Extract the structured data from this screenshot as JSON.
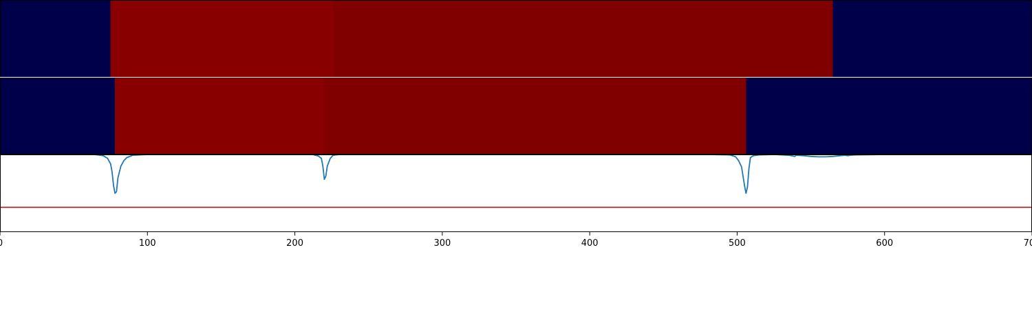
{
  "chart_data": [
    {
      "type": "heatmap",
      "row": "top",
      "segments": [
        {
          "x0": 0,
          "x1": 75,
          "color": "#00004a"
        },
        {
          "x0": 75,
          "x1": 226,
          "color": "#880000"
        },
        {
          "x0": 226,
          "x1": 565,
          "color": "#800000"
        },
        {
          "x0": 565,
          "x1": 700,
          "color": "#00004a"
        }
      ]
    },
    {
      "type": "heatmap",
      "row": "middle",
      "segments": [
        {
          "x0": 0,
          "x1": 78,
          "color": "#00004a"
        },
        {
          "x0": 78,
          "x1": 220,
          "color": "#880000"
        },
        {
          "x0": 220,
          "x1": 506,
          "color": "#800000"
        },
        {
          "x0": 506,
          "x1": 700,
          "color": "#00004a"
        }
      ]
    },
    {
      "type": "line",
      "xlim": [
        0,
        700
      ],
      "ylim": [
        0,
        1
      ],
      "xticks": [
        0,
        100,
        200,
        300,
        400,
        500,
        600,
        700
      ],
      "xtick_labels": [
        "0",
        "100",
        "200",
        "300",
        "400",
        "500",
        "600",
        "700"
      ],
      "threshold": {
        "y": 0.32,
        "color": "#d62728"
      },
      "series": [
        {
          "color": "#1f77b4",
          "x": [
            0,
            50,
            60,
            65,
            70,
            73,
            75,
            76,
            77,
            78,
            79,
            80,
            82,
            84,
            86,
            90,
            100,
            130,
            200,
            212,
            216,
            218,
            219,
            220,
            221,
            222,
            224,
            226,
            230,
            240,
            300,
            400,
            480,
            495,
            499,
            501,
            503,
            504,
            505,
            506,
            507,
            508,
            509,
            511,
            515,
            525,
            535,
            538,
            539,
            540,
            545,
            550,
            555,
            560,
            565,
            570,
            573,
            575,
            577,
            580,
            600,
            650,
            700
          ],
          "y": [
            1,
            1,
            1,
            0.998,
            0.985,
            0.95,
            0.88,
            0.78,
            0.6,
            0.5,
            0.52,
            0.7,
            0.85,
            0.92,
            0.96,
            0.99,
            1,
            1,
            1,
            1,
            0.98,
            0.95,
            0.85,
            0.68,
            0.72,
            0.85,
            0.95,
            0.99,
            1,
            1,
            1,
            1,
            1,
            0.995,
            0.97,
            0.92,
            0.84,
            0.72,
            0.6,
            0.5,
            0.58,
            0.82,
            0.96,
            0.985,
            0.995,
            1,
            0.99,
            0.98,
            0.975,
            0.99,
            0.985,
            0.975,
            0.97,
            0.97,
            0.975,
            0.985,
            0.99,
            0.985,
            0.99,
            0.995,
            1,
            1,
            1
          ]
        }
      ]
    }
  ]
}
